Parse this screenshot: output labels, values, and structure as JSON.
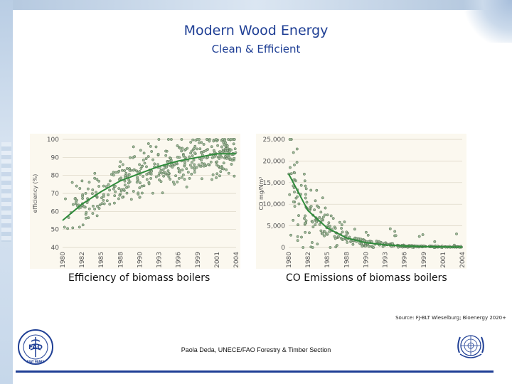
{
  "slide": {
    "title": "Modern Wood Energy",
    "subtitle": "Clean & Efficient",
    "caption_left": "Efficiency of biomass boilers",
    "caption_right": "CO Emissions of biomass boilers",
    "source": "Source: FJ-BLT Wieselburg; Bioenergy 2020+",
    "footer": "Paola Deda, UNECE/FAO Forestry & Timber Section",
    "fao_logo_letters": "FAO",
    "fao_logo_motto": "FIAT PANIS"
  },
  "colors": {
    "title": "#1f3f95",
    "trend": "#2e8b3a",
    "point_fill": "#9fb89a",
    "point_stroke": "#4e6a4a",
    "grid": "#d9d3c2"
  },
  "chart_data": [
    {
      "type": "scatter",
      "title": "Efficiency of biomass boilers",
      "ylabel": "efficiency (%)",
      "xlabel": "",
      "categories": [
        "1980",
        "1982",
        "1985",
        "1988",
        "1990",
        "1993",
        "1996",
        "1999",
        "2001",
        "2004"
      ],
      "ylim": [
        40,
        100
      ],
      "yticks": [
        40,
        50,
        60,
        70,
        80,
        90,
        100
      ],
      "grid": true,
      "trend": [
        55,
        64,
        71,
        77,
        81,
        85,
        88,
        90,
        92,
        92
      ],
      "spread": 8
    },
    {
      "type": "scatter",
      "title": "CO Emissions of biomass boilers",
      "ylabel": "CO mg/Nm³",
      "xlabel": "",
      "categories": [
        "1980",
        "1982",
        "1985",
        "1988",
        "1990",
        "1993",
        "1996",
        "1999",
        "2001",
        "2004"
      ],
      "ylim": [
        0,
        25000
      ],
      "yticks": [
        0,
        5000,
        10000,
        15000,
        20000,
        25000
      ],
      "ytick_labels": [
        "0",
        "5,000",
        "10,000",
        "15,000",
        "20,000",
        "25,000"
      ],
      "grid": true,
      "trend": [
        17000,
        8500,
        4500,
        2200,
        1100,
        600,
        350,
        220,
        150,
        120
      ],
      "spread_ratio": 0.6
    }
  ]
}
